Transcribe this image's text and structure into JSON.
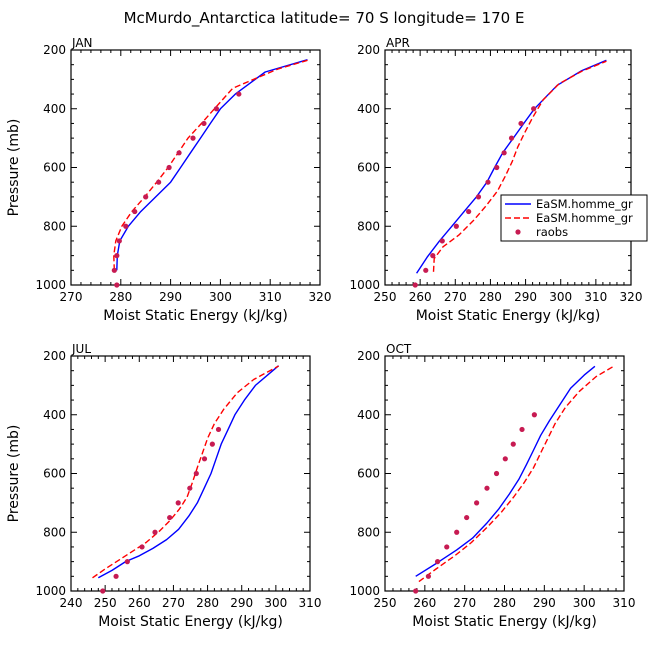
{
  "title": "McMurdo_Antarctica  latitude= 70 S longitude= 170 E",
  "chart_data": [
    {
      "type": "line",
      "panel_label": "JAN",
      "xlabel": "Moist Static Energy (kJ/kg)",
      "ylabel": "Pressure (mb)",
      "xlim": [
        270,
        320
      ],
      "ylim": [
        1000,
        200
      ],
      "y_reversed": true,
      "xticks": [
        270,
        280,
        290,
        300,
        310,
        320
      ],
      "yticks": [
        200,
        400,
        600,
        800,
        1000
      ],
      "series": [
        {
          "color": "#0000ff",
          "style": "solid",
          "points": [
            [
              279.2,
              950
            ],
            [
              279.3,
              900
            ],
            [
              279.8,
              850
            ],
            [
              281.5,
              800
            ],
            [
              284,
              750
            ],
            [
              287,
              700
            ],
            [
              290,
              650
            ],
            [
              292,
              600
            ],
            [
              294,
              550
            ],
            [
              296,
              500
            ],
            [
              298,
              450
            ],
            [
              300,
              400
            ],
            [
              303,
              350
            ],
            [
              309,
              275
            ],
            [
              317.5,
              233
            ]
          ]
        },
        {
          "color": "#ff0000",
          "style": "dashed",
          "points": [
            [
              278.7,
              950
            ],
            [
              278.6,
              900
            ],
            [
              279,
              850
            ],
            [
              280.2,
              800
            ],
            [
              282.2,
              750
            ],
            [
              284.8,
              700
            ],
            [
              287.2,
              650
            ],
            [
              289.5,
              600
            ],
            [
              291.5,
              550
            ],
            [
              293.5,
              500
            ],
            [
              296.2,
              450
            ],
            [
              298.8,
              400
            ],
            [
              302.5,
              330
            ],
            [
              311.5,
              265
            ],
            [
              317.5,
              235
            ]
          ]
        },
        {
          "color": "#c71b52",
          "style": "markers",
          "points": [
            [
              279.2,
              1000
            ],
            [
              278.7,
              950
            ],
            [
              279.2,
              900
            ],
            [
              279.7,
              850
            ],
            [
              281,
              800
            ],
            [
              282.8,
              750
            ],
            [
              285,
              700
            ],
            [
              287.6,
              650
            ],
            [
              289.7,
              600
            ],
            [
              291.7,
              550
            ],
            [
              294.5,
              500
            ],
            [
              296.7,
              450
            ],
            [
              299.2,
              400
            ],
            [
              303.7,
              350
            ]
          ]
        }
      ]
    },
    {
      "type": "line",
      "panel_label": "APR",
      "xlabel": "Moist Static Energy (kJ/kg)",
      "ylabel": "",
      "xlim": [
        250,
        320
      ],
      "ylim": [
        1000,
        200
      ],
      "y_reversed": true,
      "xticks": [
        250,
        260,
        270,
        280,
        290,
        300,
        310,
        320
      ],
      "yticks": [
        200,
        400,
        600,
        800,
        1000
      ],
      "legend": {
        "placement": "right",
        "entries": [
          "EaSM.homme_gr",
          "EaSM.homme_gr",
          "raobs"
        ]
      },
      "series": [
        {
          "name": "EaSM.homme_gr",
          "color": "#0000ff",
          "style": "solid",
          "points": [
            [
              259,
              960
            ],
            [
              262,
              905
            ],
            [
              265.5,
              850
            ],
            [
              269,
              800
            ],
            [
              272.5,
              750
            ],
            [
              276,
              700
            ],
            [
              279,
              650
            ],
            [
              281.2,
              600
            ],
            [
              283.5,
              550
            ],
            [
              286.5,
              500
            ],
            [
              289.5,
              450
            ],
            [
              292.5,
              400
            ],
            [
              299,
              320
            ],
            [
              306,
              270
            ],
            [
              313,
              235
            ]
          ]
        },
        {
          "name": "EaSM.homme_gr",
          "color": "#ff0000",
          "style": "dashed",
          "points": [
            [
              263.8,
              955
            ],
            [
              264,
              910
            ],
            [
              266.5,
              870
            ],
            [
              271,
              830
            ],
            [
              275.2,
              780
            ],
            [
              278.8,
              730
            ],
            [
              282,
              680
            ],
            [
              284.2,
              630
            ],
            [
              286.2,
              580
            ],
            [
              287.8,
              530
            ],
            [
              289.8,
              480
            ],
            [
              292,
              430
            ],
            [
              295,
              370
            ],
            [
              299.5,
              315
            ],
            [
              306,
              272
            ],
            [
              313,
              238
            ]
          ]
        },
        {
          "name": "raobs",
          "color": "#c71b52",
          "style": "markers",
          "points": [
            [
              258.6,
              1000
            ],
            [
              261.6,
              950
            ],
            [
              263.6,
              900
            ],
            [
              266.3,
              850
            ],
            [
              270.3,
              800
            ],
            [
              273.8,
              750
            ],
            [
              276.6,
              700
            ],
            [
              279.3,
              650
            ],
            [
              281.8,
              600
            ],
            [
              283.9,
              550
            ],
            [
              286,
              500
            ],
            [
              288.7,
              450
            ],
            [
              292.3,
              400
            ]
          ]
        }
      ]
    },
    {
      "type": "line",
      "panel_label": "JUL",
      "xlabel": "Moist Static Energy (kJ/kg)",
      "ylabel": "Pressure (mb)",
      "xlim": [
        240,
        310
      ],
      "ylim": [
        1000,
        200
      ],
      "y_reversed": true,
      "xticks": [
        240,
        250,
        260,
        270,
        280,
        290,
        300,
        310
      ],
      "yticks": [
        200,
        400,
        600,
        800,
        1000
      ],
      "series": [
        {
          "color": "#0000ff",
          "style": "solid",
          "points": [
            [
              248,
              955
            ],
            [
              252,
              930
            ],
            [
              256,
              900
            ],
            [
              260,
              880
            ],
            [
              264,
              855
            ],
            [
              268,
              825
            ],
            [
              271.5,
              790
            ],
            [
              274.5,
              745
            ],
            [
              277,
              700
            ],
            [
              279,
              650
            ],
            [
              281,
              600
            ],
            [
              282.5,
              550
            ],
            [
              284,
              500
            ],
            [
              286,
              450
            ],
            [
              288,
              400
            ],
            [
              290.8,
              350
            ],
            [
              294,
              300
            ],
            [
              300.8,
              233
            ]
          ]
        },
        {
          "color": "#ff0000",
          "style": "dashed",
          "points": [
            [
              246.3,
              955
            ],
            [
              250,
              925
            ],
            [
              254,
              895
            ],
            [
              258,
              865
            ],
            [
              262,
              835
            ],
            [
              266,
              795
            ],
            [
              269,
              760
            ],
            [
              271.8,
              720
            ],
            [
              274,
              680
            ],
            [
              275.6,
              630
            ],
            [
              277,
              580
            ],
            [
              278.5,
              530
            ],
            [
              280,
              480
            ],
            [
              282,
              430
            ],
            [
              284.8,
              380
            ],
            [
              288.7,
              325
            ],
            [
              293.5,
              280
            ],
            [
              300.8,
              234
            ]
          ]
        },
        {
          "color": "#c71b52",
          "style": "markers",
          "points": [
            [
              249.3,
              1000
            ],
            [
              253.2,
              950
            ],
            [
              256.5,
              900
            ],
            [
              260.8,
              850
            ],
            [
              264.6,
              800
            ],
            [
              268.9,
              750
            ],
            [
              271.4,
              700
            ],
            [
              274.8,
              650
            ],
            [
              276.7,
              600
            ],
            [
              279.1,
              550
            ],
            [
              281.4,
              500
            ],
            [
              283.2,
              450
            ]
          ]
        }
      ]
    },
    {
      "type": "line",
      "panel_label": "OCT",
      "xlabel": "Moist Static Energy (kJ/kg)",
      "ylabel": "",
      "xlim": [
        250,
        310
      ],
      "ylim": [
        1000,
        200
      ],
      "y_reversed": true,
      "xticks": [
        250,
        260,
        270,
        280,
        290,
        300,
        310
      ],
      "yticks": [
        200,
        400,
        600,
        800,
        1000
      ],
      "series": [
        {
          "color": "#0000ff",
          "style": "solid",
          "points": [
            [
              257.7,
              950
            ],
            [
              263,
              905
            ],
            [
              268,
              860
            ],
            [
              272,
              820
            ],
            [
              275.5,
              770
            ],
            [
              278.6,
              720
            ],
            [
              281.2,
              670
            ],
            [
              283.6,
              620
            ],
            [
              285.5,
              570
            ],
            [
              287.3,
              520
            ],
            [
              289.1,
              470
            ],
            [
              291.3,
              420
            ],
            [
              293.7,
              370
            ],
            [
              296.6,
              310
            ],
            [
              300,
              265
            ],
            [
              302.7,
              235
            ]
          ]
        },
        {
          "color": "#ff0000",
          "style": "dashed",
          "points": [
            [
              258.5,
              968
            ],
            [
              262.8,
              925
            ],
            [
              267.5,
              880
            ],
            [
              271.7,
              835
            ],
            [
              275.5,
              785
            ],
            [
              279,
              735
            ],
            [
              282.3,
              680
            ],
            [
              285,
              630
            ],
            [
              287.3,
              580
            ],
            [
              289.1,
              530
            ],
            [
              290.9,
              480
            ],
            [
              292.7,
              430
            ],
            [
              295.3,
              375
            ],
            [
              298.8,
              320
            ],
            [
              303,
              270
            ],
            [
              307.4,
              235
            ]
          ]
        },
        {
          "color": "#c71b52",
          "style": "markers",
          "points": [
            [
              257.7,
              1000
            ],
            [
              260.9,
              950
            ],
            [
              263.2,
              900
            ],
            [
              265.5,
              850
            ],
            [
              268,
              800
            ],
            [
              270.5,
              750
            ],
            [
              273,
              700
            ],
            [
              275.6,
              650
            ],
            [
              278,
              600
            ],
            [
              280.2,
              550
            ],
            [
              282.2,
              500
            ],
            [
              284.4,
              450
            ],
            [
              287.5,
              400
            ]
          ]
        }
      ]
    }
  ]
}
